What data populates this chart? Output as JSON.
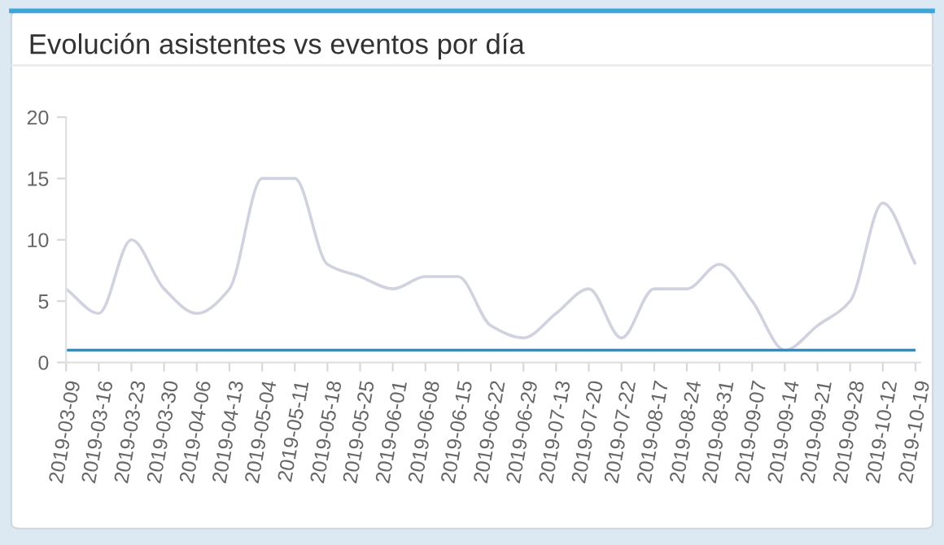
{
  "chart_data": {
    "type": "line",
    "title": "Evolución asistentes vs eventos por día",
    "categories": [
      "2019-03-09",
      "2019-03-16",
      "2019-03-23",
      "2019-03-30",
      "2019-04-06",
      "2019-04-13",
      "2019-05-04",
      "2019-05-11",
      "2019-05-18",
      "2019-05-25",
      "2019-06-01",
      "2019-06-08",
      "2019-06-15",
      "2019-06-22",
      "2019-06-29",
      "2019-07-13",
      "2019-07-20",
      "2019-07-22",
      "2019-08-17",
      "2019-08-24",
      "2019-08-31",
      "2019-09-07",
      "2019-09-14",
      "2019-09-21",
      "2019-09-28",
      "2019-10-12",
      "2019-10-19"
    ],
    "series": [
      {
        "color": "#d0d3df",
        "values": [
          6,
          4,
          10,
          6,
          4,
          6,
          15,
          15,
          8,
          7,
          6,
          7,
          7,
          3,
          2,
          4,
          6,
          2,
          6,
          6,
          8,
          5,
          1,
          3,
          5,
          13,
          8
        ]
      },
      {
        "color": "#2a8fc6",
        "values": [
          1,
          1,
          1,
          1,
          1,
          1,
          1,
          1,
          1,
          1,
          1,
          1,
          1,
          1,
          1,
          1,
          1,
          1,
          1,
          1,
          1,
          1,
          1,
          1,
          1,
          1,
          1
        ]
      }
    ],
    "ylim": [
      0,
      20
    ],
    "yticks": [
      0,
      5,
      10,
      15,
      20
    ],
    "grid": false,
    "legend": false,
    "marker": "none",
    "line_style": "solid"
  }
}
